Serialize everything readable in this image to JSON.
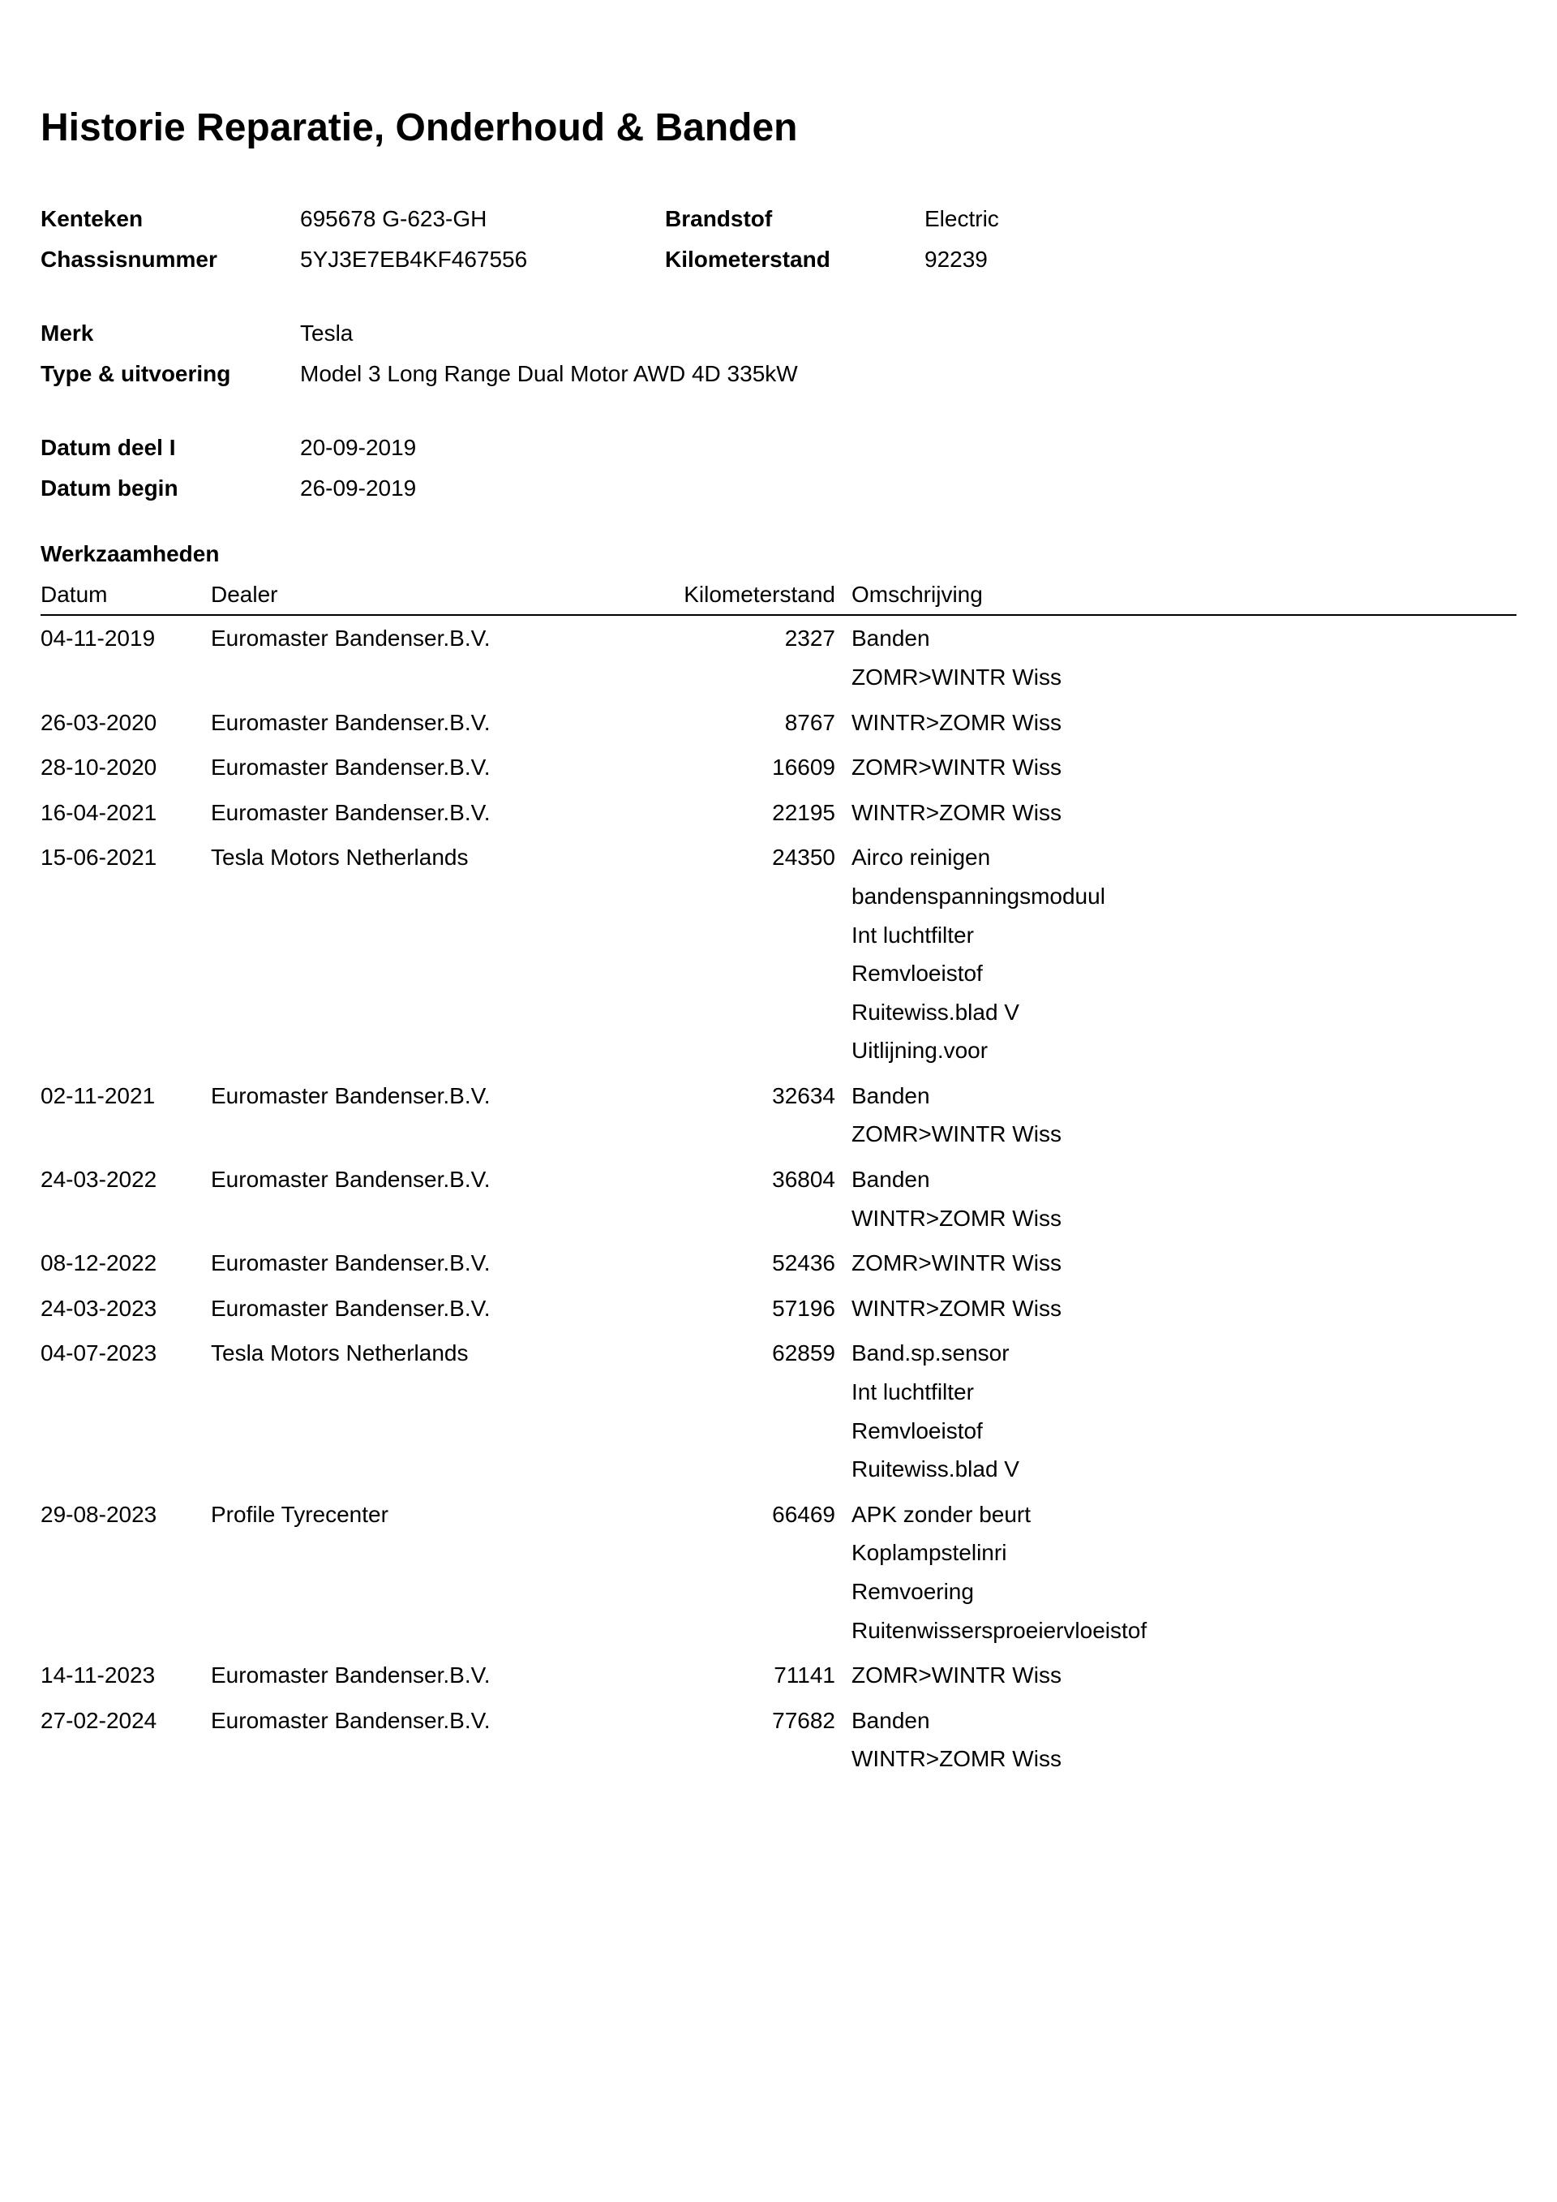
{
  "title": "Historie Reparatie, Onderhoud & Banden",
  "labels": {
    "kenteken": "Kenteken",
    "chassis": "Chassisnummer",
    "brandstof": "Brandstof",
    "km": "Kilometerstand",
    "merk": "Merk",
    "type": "Type & uitvoering",
    "datumDeel1": "Datum deel I",
    "datumBegin": "Datum begin",
    "section": "Werkzaamheden"
  },
  "vehicle": {
    "kenteken": "695678 G-623-GH",
    "chassis": "5YJ3E7EB4KF467556",
    "brandstof": "Electric",
    "km": "92239",
    "merk": "Tesla",
    "type": "Model 3 Long Range Dual Motor AWD 4D 335kW",
    "datumDeel1": "20-09-2019",
    "datumBegin": "26-09-2019"
  },
  "columns": {
    "date": "Datum",
    "dealer": "Dealer",
    "km": "Kilometerstand",
    "desc": "Omschrijving"
  },
  "work": [
    {
      "date": "04-11-2019",
      "dealer": "Euromaster Bandenser.B.V.",
      "km": "2327",
      "desc": [
        "Banden",
        "ZOMR>WINTR Wiss"
      ]
    },
    {
      "date": "26-03-2020",
      "dealer": "Euromaster Bandenser.B.V.",
      "km": "8767",
      "desc": [
        "WINTR>ZOMR Wiss"
      ]
    },
    {
      "date": "28-10-2020",
      "dealer": "Euromaster Bandenser.B.V.",
      "km": "16609",
      "desc": [
        "ZOMR>WINTR Wiss"
      ]
    },
    {
      "date": "16-04-2021",
      "dealer": "Euromaster Bandenser.B.V.",
      "km": "22195",
      "desc": [
        "WINTR>ZOMR Wiss"
      ]
    },
    {
      "date": "15-06-2021",
      "dealer": "Tesla Motors Netherlands",
      "km": "24350",
      "desc": [
        "Airco reinigen",
        "bandenspanningsmoduul",
        "Int luchtfilter",
        "Remvloeistof",
        "Ruitewiss.blad V",
        "Uitlijning.voor"
      ]
    },
    {
      "date": "02-11-2021",
      "dealer": "Euromaster Bandenser.B.V.",
      "km": "32634",
      "desc": [
        "Banden",
        "ZOMR>WINTR Wiss"
      ]
    },
    {
      "date": "24-03-2022",
      "dealer": "Euromaster Bandenser.B.V.",
      "km": "36804",
      "desc": [
        "Banden",
        "WINTR>ZOMR Wiss"
      ]
    },
    {
      "date": "08-12-2022",
      "dealer": "Euromaster Bandenser.B.V.",
      "km": "52436",
      "desc": [
        "ZOMR>WINTR Wiss"
      ]
    },
    {
      "date": "24-03-2023",
      "dealer": "Euromaster Bandenser.B.V.",
      "km": "57196",
      "desc": [
        "WINTR>ZOMR Wiss"
      ]
    },
    {
      "date": "04-07-2023",
      "dealer": "Tesla Motors Netherlands",
      "km": "62859",
      "desc": [
        "Band.sp.sensor",
        "Int luchtfilter",
        "Remvloeistof",
        "Ruitewiss.blad V"
      ]
    },
    {
      "date": "29-08-2023",
      "dealer": "Profile Tyrecenter",
      "km": "66469",
      "desc": [
        "APK zonder beurt",
        "Koplampstelinri",
        "Remvoering",
        "Ruitenwissersproeiervloeistof"
      ]
    },
    {
      "date": "14-11-2023",
      "dealer": "Euromaster Bandenser.B.V.",
      "km": "71141",
      "desc": [
        "ZOMR>WINTR Wiss"
      ]
    },
    {
      "date": "27-02-2024",
      "dealer": "Euromaster Bandenser.B.V.",
      "km": "77682",
      "desc": [
        "Banden",
        "WINTR>ZOMR Wiss"
      ]
    }
  ]
}
